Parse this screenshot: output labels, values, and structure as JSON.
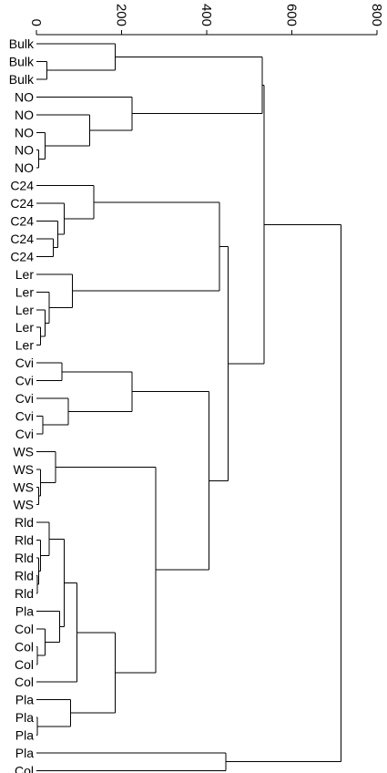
{
  "chart_data": {
    "type": "dendrogram",
    "orientation": "horizontal",
    "axis": {
      "position": "top",
      "range": [
        0,
        800
      ],
      "ticks": [
        0,
        200,
        400,
        600,
        800
      ],
      "tick_labels": [
        "0",
        "200",
        "400",
        "600",
        "800"
      ]
    },
    "leaves": [
      "Bulk",
      "Bulk",
      "Bulk",
      "NO",
      "NO",
      "NO",
      "NO",
      "NO",
      "C24",
      "C24",
      "C24",
      "C24",
      "C24",
      "Ler",
      "Ler",
      "Ler",
      "Ler",
      "Ler",
      "Cvi",
      "Cvi",
      "Cvi",
      "Cvi",
      "Cvi",
      "WS",
      "WS",
      "WS",
      "WS",
      "Rld",
      "Rld",
      "Rld",
      "Rld",
      "Rld",
      "Pla",
      "Col",
      "Col",
      "Col",
      "Col",
      "Pla",
      "Pla",
      "Pla",
      "Pla",
      "Col"
    ],
    "merges": [
      {
        "id": "m1",
        "a": 1,
        "b": 2,
        "h": 25
      },
      {
        "id": "m2",
        "a": 0,
        "b": "m1",
        "h": 185
      },
      {
        "id": "m3",
        "a": 6,
        "b": 7,
        "h": 5
      },
      {
        "id": "m4",
        "a": 5,
        "b": "m3",
        "h": 20
      },
      {
        "id": "m5",
        "a": 4,
        "b": "m4",
        "h": 125
      },
      {
        "id": "m6",
        "a": 3,
        "b": "m5",
        "h": 225
      },
      {
        "id": "m7",
        "a": "m2",
        "b": "m6",
        "h": 530
      },
      {
        "id": "m8",
        "a": 11,
        "b": 12,
        "h": 40
      },
      {
        "id": "m9",
        "a": 10,
        "b": "m8",
        "h": 50
      },
      {
        "id": "m10",
        "a": 9,
        "b": "m9",
        "h": 65
      },
      {
        "id": "m11",
        "a": 8,
        "b": "m10",
        "h": 135
      },
      {
        "id": "m12",
        "a": 16,
        "b": 17,
        "h": 10
      },
      {
        "id": "m13",
        "a": 15,
        "b": "m12",
        "h": 20
      },
      {
        "id": "m14",
        "a": 14,
        "b": "m13",
        "h": 30
      },
      {
        "id": "m15",
        "a": 13,
        "b": "m14",
        "h": 85
      },
      {
        "id": "m16",
        "a": "m11",
        "b": "m15",
        "h": 430
      },
      {
        "id": "m17",
        "a": 18,
        "b": 19,
        "h": 60
      },
      {
        "id": "m18",
        "a": 21,
        "b": 22,
        "h": 15
      },
      {
        "id": "m19",
        "a": 20,
        "b": "m18",
        "h": 75
      },
      {
        "id": "m20",
        "a": "m17",
        "b": "m19",
        "h": 225
      },
      {
        "id": "m21",
        "a": 25,
        "b": 26,
        "h": 5
      },
      {
        "id": "m22",
        "a": 24,
        "b": "m21",
        "h": 10
      },
      {
        "id": "m23",
        "a": 23,
        "b": "m22",
        "h": 45
      },
      {
        "id": "m24",
        "a": 30,
        "b": 31,
        "h": 2
      },
      {
        "id": "m25",
        "a": 29,
        "b": "m24",
        "h": 5
      },
      {
        "id": "m26",
        "a": 28,
        "b": "m25",
        "h": 10
      },
      {
        "id": "m27",
        "a": 27,
        "b": "m26",
        "h": 30
      },
      {
        "id": "m28",
        "a": 34,
        "b": 35,
        "h": 2
      },
      {
        "id": "m29",
        "a": 33,
        "b": "m28",
        "h": 20
      },
      {
        "id": "m30",
        "a": 32,
        "b": "m29",
        "h": 55
      },
      {
        "id": "m31",
        "a": "m27",
        "b": "m30",
        "h": 65
      },
      {
        "id": "m32",
        "a": "m31",
        "b": 36,
        "h": 95
      },
      {
        "id": "m33",
        "a": 38,
        "b": 39,
        "h": 2
      },
      {
        "id": "m34",
        "a": 37,
        "b": "m33",
        "h": 80
      },
      {
        "id": "m35",
        "a": "m32",
        "b": "m34",
        "h": 185
      },
      {
        "id": "m36",
        "a": "m23",
        "b": "m35",
        "h": 280
      },
      {
        "id": "m37",
        "a": "m20",
        "b": "m36",
        "h": 405
      },
      {
        "id": "m38",
        "a": "m16",
        "b": "m37",
        "h": 450
      },
      {
        "id": "m39",
        "a": "m7",
        "b": "m38",
        "h": 535
      },
      {
        "id": "m40",
        "a": 40,
        "b": 41,
        "h": 445
      },
      {
        "id": "m41",
        "a": "m39",
        "b": "m40",
        "h": 715
      }
    ]
  }
}
